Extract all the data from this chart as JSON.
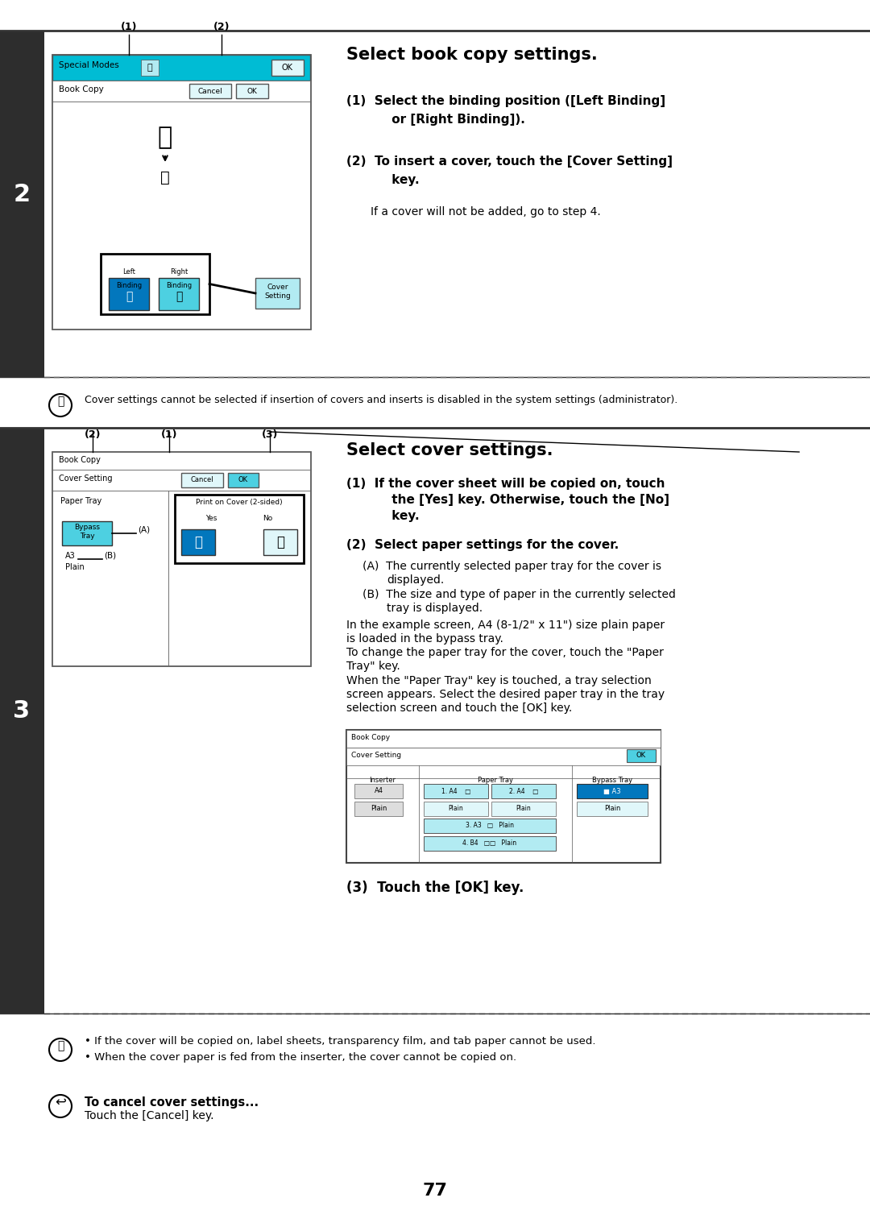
{
  "page_bg": "#ffffff",
  "sidebar_color": "#2d2d2d",
  "cyan_header": "#00bcd4",
  "light_cyan": "#b2ebf2",
  "cyan_btn": "#4dd0e1",
  "dark_cyan_btn": "#00838f",
  "btn_selected": "#0277bd",
  "border_color": "#555555",
  "light_border": "#aaaaaa",
  "section2_step": "2",
  "section3_step": "3",
  "section2_title": "Select book copy settings.",
  "section3_title": "Select cover settings.",
  "sec2_items": [
    "(1)  Select the binding position ([Left Binding]\n      or [Right Binding]).",
    "(2)  To insert a cover, touch the [Cover Setting]\n      key.\n\n      If a cover will not be added, go to step 4."
  ],
  "sec3_items": [
    "(1)  If the cover sheet will be copied on, touch\n      the [Yes] key. Otherwise, touch the [No]\n      key.",
    "(2)  Select paper settings for the cover.\n\n      (A)  The currently selected paper tray for the cover is\n             displayed.\n      (B)  The size and type of paper in the currently selected\n             tray is displayed.\n      In the example screen, A4 (8-1/2\" x 11\") size plain paper\n      is loaded in the bypass tray.\n      To change the paper tray for the cover, touch the \"Paper\n      Tray\" key.\n      When the \"Paper Tray\" key is touched, a tray selection\n      screen appears. Select the desired paper tray in the tray\n      selection screen and touch the [OK] key.",
    "(3)  Touch the [OK] key."
  ],
  "note1": "Cover settings cannot be selected if insertion of covers and inserts is disabled in the system settings (administrator).",
  "note2_bullets": [
    "• If the cover will be copied on, label sheets, transparency film, and tab paper cannot be used.",
    "• When the cover paper is fed from the inserter, the cover cannot be copied on."
  ],
  "cancel_title": "To cancel cover settings...",
  "cancel_text": "Touch the [Cancel] key.",
  "page_number": "77",
  "dotted_line_color": "#666666"
}
